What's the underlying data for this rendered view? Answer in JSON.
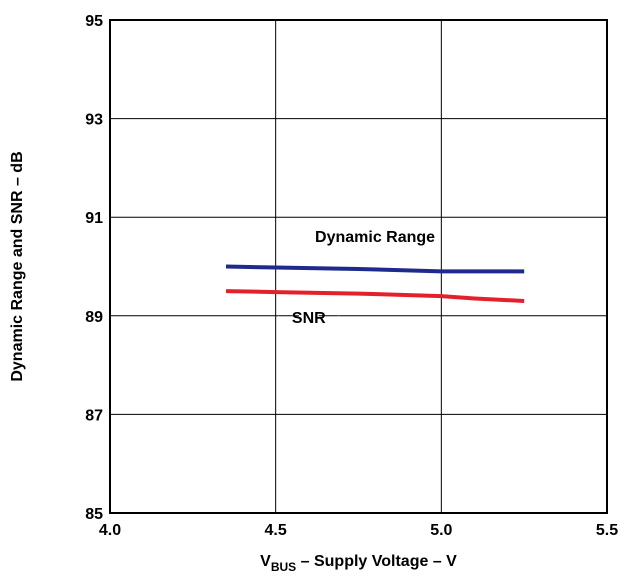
{
  "chart_data": {
    "type": "line",
    "title": "",
    "xlabel": {
      "main": "V",
      "sub": "BUS",
      "rest": " – Supply Voltage – V"
    },
    "ylabel": "Dynamic Range and SNR – dB",
    "xlim": [
      4.0,
      5.5
    ],
    "ylim": [
      85,
      95
    ],
    "x_ticks": [
      4.0,
      4.5,
      5.0,
      5.5
    ],
    "x_tick_labels": [
      "4.0",
      "4.5",
      "5.0",
      "5.5"
    ],
    "y_ticks": [
      85,
      87,
      89,
      91,
      93,
      95
    ],
    "y_tick_labels": [
      "85",
      "87",
      "89",
      "91",
      "93",
      "95"
    ],
    "grid": true,
    "legend": "none",
    "series": [
      {
        "name": "Dynamic Range",
        "color": "#1f2a8c",
        "x": [
          4.35,
          4.5,
          4.75,
          5.0,
          5.1,
          5.25
        ],
        "y": [
          90.0,
          89.98,
          89.95,
          89.9,
          89.9,
          89.9
        ]
      },
      {
        "name": "SNR",
        "color": "#e4212b",
        "x": [
          4.35,
          4.5,
          4.75,
          5.0,
          5.1,
          5.25
        ],
        "y": [
          89.5,
          89.48,
          89.45,
          89.4,
          89.35,
          89.3
        ]
      }
    ],
    "annotations": [
      {
        "text": "Dynamic Range",
        "series": "Dynamic Range"
      },
      {
        "text": "SNR",
        "series": "SNR"
      }
    ]
  }
}
